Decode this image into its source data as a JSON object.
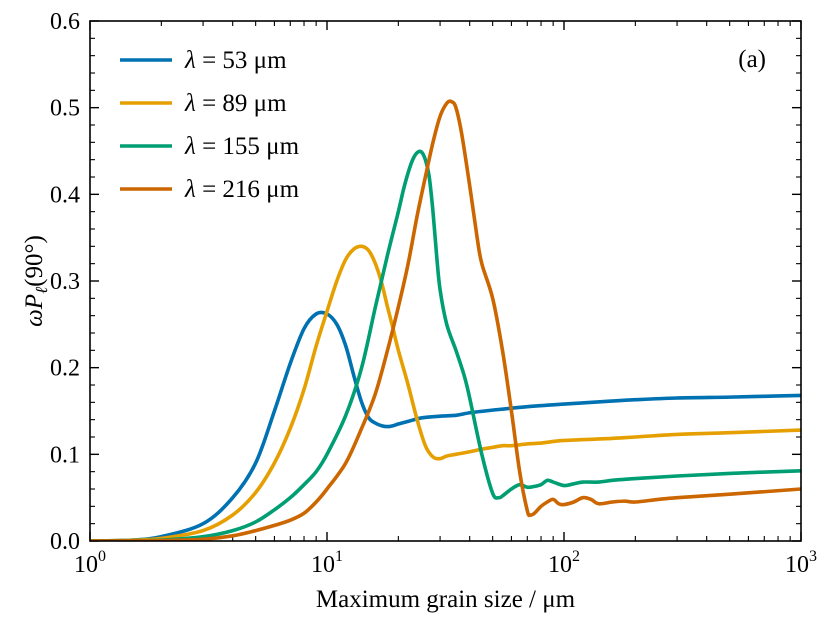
{
  "chart_data": {
    "type": "line",
    "title": "",
    "panel_label": "(a)",
    "xlabel": "Maximum grain size / μm",
    "ylabel": {
      "pre": "ω",
      "main": "P",
      "sub": "ℓ",
      "post": "(90°)"
    },
    "xscale": "log",
    "xlim": [
      1,
      1000
    ],
    "ylim": [
      0.0,
      0.6
    ],
    "x_tick_labels": [
      {
        "value": 1,
        "base": "10",
        "exp": "0"
      },
      {
        "value": 10,
        "base": "10",
        "exp": "1"
      },
      {
        "value": 100,
        "base": "10",
        "exp": "2"
      },
      {
        "value": 1000,
        "base": "10",
        "exp": "3"
      }
    ],
    "y_ticks": [
      0.0,
      0.1,
      0.2,
      0.3,
      0.4,
      0.5,
      0.6
    ],
    "y_tick_labels": [
      "0.0",
      "0.1",
      "0.2",
      "0.3",
      "0.4",
      "0.5",
      "0.6"
    ],
    "legend_position": "top-left",
    "series": [
      {
        "name": "λ = 53 μm",
        "symbol": "λ",
        "rest": " = 53 μm",
        "color": "#0072B2",
        "x": [
          1,
          1.5,
          2,
          3,
          4,
          5,
          6,
          7,
          8,
          9,
          10,
          11,
          12,
          13,
          14,
          15,
          16,
          17,
          18,
          19,
          20,
          22,
          25,
          30,
          35,
          40,
          50,
          70,
          100,
          150,
          200,
          300,
          500,
          700,
          1000
        ],
        "y": [
          0.0,
          0.001,
          0.005,
          0.02,
          0.05,
          0.09,
          0.15,
          0.205,
          0.245,
          0.262,
          0.262,
          0.25,
          0.225,
          0.19,
          0.16,
          0.142,
          0.136,
          0.133,
          0.132,
          0.133,
          0.135,
          0.138,
          0.142,
          0.144,
          0.145,
          0.148,
          0.151,
          0.155,
          0.158,
          0.161,
          0.163,
          0.165,
          0.166,
          0.167,
          0.168
        ]
      },
      {
        "name": "λ = 89 μm",
        "symbol": "λ",
        "rest": " = 89 μm",
        "color": "#E69F00",
        "x": [
          1,
          1.5,
          2,
          3,
          4,
          5,
          6,
          7,
          8,
          9,
          10,
          11,
          12,
          13,
          14,
          15,
          16,
          17,
          18,
          19,
          20,
          22,
          24,
          26,
          28,
          30,
          32,
          35,
          40,
          45,
          50,
          55,
          60,
          70,
          80,
          100,
          150,
          200,
          300,
          500,
          1000
        ],
        "y": [
          0.0,
          0.001,
          0.003,
          0.012,
          0.03,
          0.056,
          0.09,
          0.13,
          0.175,
          0.225,
          0.265,
          0.3,
          0.325,
          0.337,
          0.34,
          0.335,
          0.32,
          0.298,
          0.27,
          0.245,
          0.22,
          0.18,
          0.14,
          0.11,
          0.097,
          0.095,
          0.098,
          0.1,
          0.103,
          0.106,
          0.108,
          0.11,
          0.11,
          0.112,
          0.113,
          0.116,
          0.118,
          0.12,
          0.123,
          0.125,
          0.128
        ]
      },
      {
        "name": "λ = 155 μm",
        "symbol": "λ",
        "rest": " = 155 μm",
        "color": "#009E73",
        "x": [
          1,
          1.5,
          2,
          3,
          4,
          5,
          6,
          7,
          8,
          9,
          10,
          12,
          14,
          16,
          18,
          20,
          21,
          22,
          23,
          24,
          25,
          26,
          27,
          28,
          29,
          30,
          32,
          35,
          38,
          40,
          45,
          50,
          53,
          55,
          60,
          65,
          70,
          75,
          80,
          85,
          90,
          100,
          110,
          120,
          140,
          160,
          200,
          300,
          500,
          1000
        ],
        "y": [
          0.0,
          0.0005,
          0.001,
          0.005,
          0.012,
          0.022,
          0.036,
          0.05,
          0.065,
          0.08,
          0.1,
          0.145,
          0.2,
          0.27,
          0.33,
          0.38,
          0.405,
          0.425,
          0.44,
          0.448,
          0.449,
          0.44,
          0.42,
          0.38,
          0.33,
          0.29,
          0.25,
          0.22,
          0.19,
          0.165,
          0.1,
          0.055,
          0.05,
          0.052,
          0.06,
          0.065,
          0.062,
          0.063,
          0.065,
          0.07,
          0.068,
          0.064,
          0.066,
          0.068,
          0.068,
          0.07,
          0.072,
          0.075,
          0.078,
          0.081
        ]
      },
      {
        "name": "λ = 216 μm",
        "symbol": "λ",
        "rest": " = 216 μm",
        "color": "#CC6600",
        "x": [
          1,
          1.5,
          2,
          3,
          4,
          5,
          6,
          7,
          8,
          9,
          10,
          12,
          14,
          16,
          18,
          20,
          22,
          24,
          26,
          28,
          30,
          32,
          33.5,
          35,
          37,
          40,
          43,
          45,
          50,
          55,
          60,
          65,
          70,
          72,
          75,
          80,
          85,
          90,
          95,
          100,
          110,
          120,
          130,
          140,
          160,
          180,
          200,
          250,
          300,
          500,
          1000
        ],
        "y": [
          0.0,
          0.0002,
          0.0005,
          0.002,
          0.006,
          0.012,
          0.018,
          0.024,
          0.032,
          0.045,
          0.06,
          0.09,
          0.13,
          0.17,
          0.22,
          0.27,
          0.32,
          0.375,
          0.42,
          0.46,
          0.49,
          0.505,
          0.507,
          0.5,
          0.47,
          0.41,
          0.35,
          0.32,
          0.28,
          0.22,
          0.15,
          0.08,
          0.035,
          0.03,
          0.032,
          0.04,
          0.045,
          0.048,
          0.043,
          0.042,
          0.045,
          0.05,
          0.048,
          0.043,
          0.045,
          0.046,
          0.045,
          0.048,
          0.05,
          0.054,
          0.06
        ]
      }
    ]
  }
}
